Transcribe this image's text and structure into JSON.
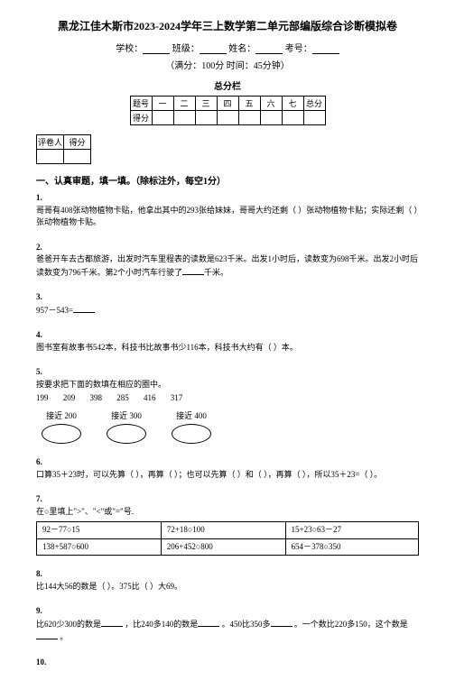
{
  "title": "黑龙江佳木斯市2023-2024学年三上数学第二单元部编版综合诊断模拟卷",
  "meta": {
    "school_label": "学校：",
    "class_label": "班级：",
    "name_label": "姓名：",
    "exam_no_label": "考号：",
    "sub": "（满分：100分 时间：45分钟）"
  },
  "score_bar_title": "总分栏",
  "score_headers": [
    "题号",
    "一",
    "二",
    "三",
    "四",
    "五",
    "六",
    "七",
    "总分"
  ],
  "score_row2_label": "得分",
  "grader": {
    "c1": "评卷人",
    "c2": "得分"
  },
  "section1_title": "一、认真审题，填一填。（除标注外，每空1分）",
  "q1": {
    "num": "1.",
    "text_a": "哥哥有408张动物植物卡贴，他拿出其中的293张给妹妹，哥哥大约还剩（",
    "text_b": "）张动物植物卡贴；实际还剩（",
    "text_c": "）张动物植物卡贴。"
  },
  "q2": {
    "num": "2.",
    "text_a": "爸爸开车去古都旅游，出发时汽车里程表的读数是623千米。出发1小时后，读数变为698千米。出发2小时后读数变为796千米。第2个小时汽车行驶了",
    "text_b": "千米。"
  },
  "q3": {
    "num": "3.",
    "text": "957－543="
  },
  "q4": {
    "num": "4.",
    "text_a": "图书室有故事书542本，科技书比故事书少116本，科技书大约有（",
    "text_b": "）本。"
  },
  "q5": {
    "num": "5.",
    "text": "按要求把下面的数填在相应的圈中。",
    "nums": [
      "199",
      "209",
      "398",
      "285",
      "416",
      "317"
    ],
    "labels": [
      "接近 200",
      "接近 300",
      "接近 400"
    ]
  },
  "q6": {
    "num": "6.",
    "text_a": "口算35＋23时，可以先算（",
    "text_b": "），再算（",
    "text_c": "）；也可以先算（",
    "text_d": "）和（",
    "text_e": "），再算（",
    "text_f": "），所以35＋23=（",
    "text_g": "）。"
  },
  "q7": {
    "num": "7.",
    "text": "在○里填上\">\"、\"<\"或\"=\"号.",
    "cells": [
      [
        "92－77○15",
        "72+18○100",
        "15+23○63－27"
      ],
      [
        "138+587○600",
        "206+452○800",
        "654－378○350"
      ]
    ]
  },
  "q8": {
    "num": "8.",
    "text_a": "比144大56的数是（",
    "text_b": "）。375比（",
    "text_c": "）大69。"
  },
  "q9": {
    "num": "9.",
    "text_a": "比620少300的数是",
    "text_b": "，比240多140的数是",
    "text_c": "。450比350多",
    "text_d": "。一个数比220多150，这个数是",
    "text_e": "。"
  },
  "q10": {
    "num": "10."
  }
}
